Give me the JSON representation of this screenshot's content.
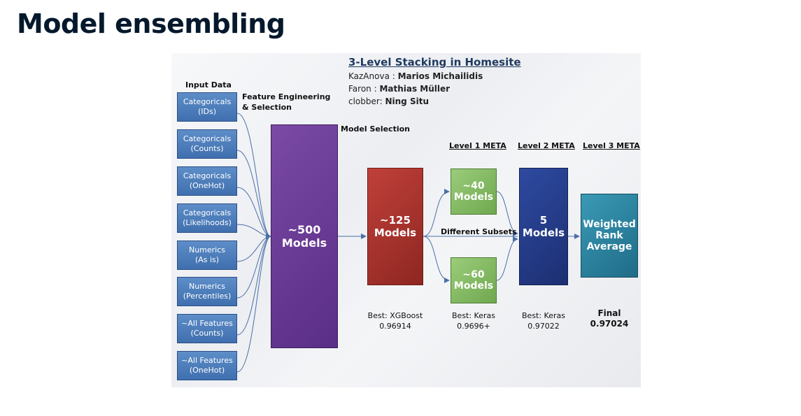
{
  "slide": {
    "title": "Model ensembling"
  },
  "figure": {
    "title": "3-Level Stacking in Homesite",
    "credits": [
      {
        "handle": "KazAnova",
        "name": "Marios  Michailidis",
        "sep": " : "
      },
      {
        "handle": "Faron",
        "name": "Mathias  Müller",
        "sep": " : "
      },
      {
        "handle": "clobber",
        "name": "Ning Situ",
        "sep": ": "
      }
    ],
    "labels": {
      "input_data": "Input Data",
      "feature_engineering_1": "Feature Engineering",
      "feature_engineering_2": "& Selection",
      "model_selection": "Model Selection",
      "level1": "Level 1 META",
      "level2": "Level 2 META",
      "level3": "Level 3 META",
      "different_subsets": "Different Subsets"
    },
    "inputs": [
      {
        "line1": "Categoricals",
        "line2": "(IDs)"
      },
      {
        "line1": "Categoricals",
        "line2": "(Counts)"
      },
      {
        "line1": "Categoricals",
        "line2": "(OneHot)"
      },
      {
        "line1": "Categoricals",
        "line2": "(Likelihoods)"
      },
      {
        "line1": "Numerics",
        "line2": "(As is)"
      },
      {
        "line1": "Numerics",
        "line2": "(Percentiles)"
      },
      {
        "line1": "~All Features",
        "line2": "(Counts)"
      },
      {
        "line1": "~All Features",
        "line2": "(OneHot)"
      }
    ],
    "models": {
      "m500": {
        "line1": "~500",
        "line2": "Models"
      },
      "m125": {
        "line1": "~125",
        "line2": "Models"
      },
      "m40": {
        "line1": "~40",
        "line2": "Models"
      },
      "m60": {
        "line1": "~60",
        "line2": "Models"
      },
      "m5": {
        "line1": "5",
        "line2": "Models"
      },
      "final": {
        "line1": "Weighted",
        "line2": "Rank",
        "line3": "Average"
      }
    },
    "results": {
      "r125": {
        "best": "Best: XGBoost",
        "score": "0.96914"
      },
      "r40": {
        "best": "Best: Keras",
        "score": "0.9696+"
      },
      "r5": {
        "best": "Best: Keras",
        "score": "0.97022"
      },
      "final": {
        "best": "Final",
        "score": "0.97024"
      }
    },
    "colors": {
      "input": "#4a7bbb",
      "m500": "#6a3b96",
      "m125": "#a8332d",
      "level1": "#86bb63",
      "level2": "#243b88",
      "level3": "#2b84a0"
    }
  }
}
